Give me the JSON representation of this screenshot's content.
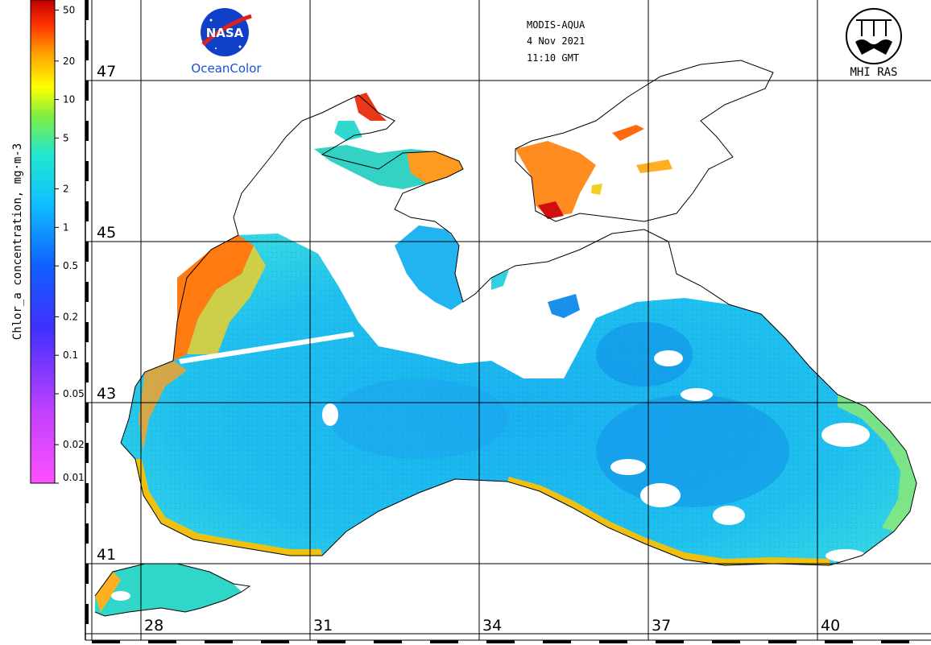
{
  "header": {
    "sensor": "MODIS-AQUA",
    "date": "4 Nov 2021",
    "time": "11:10 GMT"
  },
  "logos": {
    "nasa_text": "NASA",
    "oceancolor_text": "OceanColor",
    "mhi_text": "MHI RAS"
  },
  "colorbar": {
    "title": "Chlor_a concentration, mg·m-3",
    "ticks": [
      {
        "label": "50",
        "value": 50
      },
      {
        "label": "20",
        "value": 20
      },
      {
        "label": "10",
        "value": 10
      },
      {
        "label": "5",
        "value": 5
      },
      {
        "label": "2",
        "value": 2
      },
      {
        "label": "1",
        "value": 1
      },
      {
        "label": "0.5",
        "value": 0.5
      },
      {
        "label": "0.2",
        "value": 0.2
      },
      {
        "label": "0.1",
        "value": 0.1
      },
      {
        "label": "0.05",
        "value": 0.05
      },
      {
        "label": "0.02",
        "value": 0.02
      },
      {
        "label": "0.01",
        "value": 0.01
      }
    ],
    "scale": "log",
    "range": [
      0.01,
      60
    ]
  },
  "grid": {
    "latitudes": [
      "47",
      "45",
      "43",
      "41"
    ],
    "longitudes": [
      "28",
      "31",
      "34",
      "37",
      "40"
    ]
  },
  "colors": {
    "land": "#ffffff",
    "coastline": "#000000",
    "grid": "#000000"
  }
}
